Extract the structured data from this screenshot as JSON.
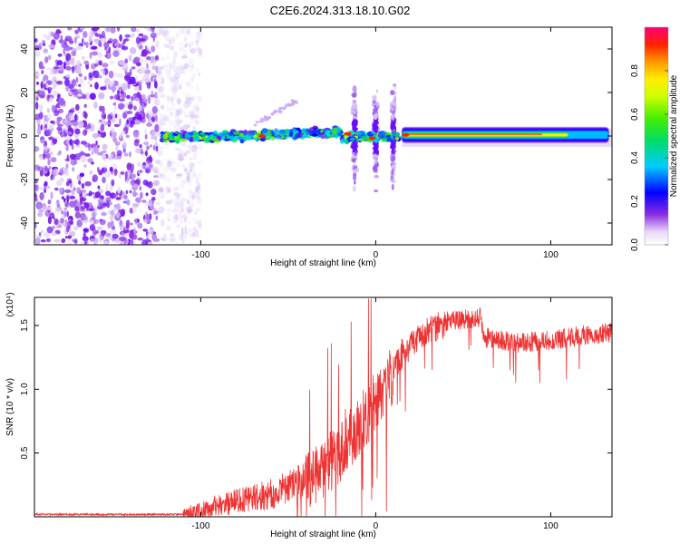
{
  "title": "C2E6.2024.313.18.10.G02",
  "chart_data": [
    {
      "type": "heatmap",
      "xlabel": "Height of straight line (km)",
      "ylabel": "Frequency (Hz)",
      "xlim": [
        -195,
        135
      ],
      "ylim": [
        -50,
        50
      ],
      "xticks": [
        -100,
        0,
        100
      ],
      "yticks": [
        -40,
        -20,
        0,
        20,
        40
      ],
      "colorbar": {
        "label": "Normalized spectral amplitude",
        "range": [
          0,
          1
        ],
        "ticks": [
          0.0,
          0.2,
          0.4,
          0.6,
          0.8
        ],
        "tick_labels": [
          "0.0",
          "0.2",
          "0.4",
          "0.6",
          "0.8"
        ]
      },
      "features": {
        "scatter_noise_x_range": [
          -195,
          -105
        ],
        "main_band_x_range": [
          -122,
          135
        ],
        "main_band_center_hz": 0,
        "bright_segment_x_range": [
          15,
          130
        ],
        "vertical_spikes_x": [
          -12,
          0,
          10
        ]
      }
    },
    {
      "type": "line",
      "xlabel": "Height of straight line (km)",
      "ylabel": "SNR (10 * v/v)",
      "y_multiplier": "(x10⁴)",
      "xlim": [
        -195,
        135
      ],
      "ylim": [
        0,
        1.72
      ],
      "xticks": [
        -100,
        0,
        100
      ],
      "yticks": [
        0.5,
        1.0,
        1.5
      ],
      "ytick_labels": [
        "0.5",
        "1.0",
        "1.5"
      ],
      "color": "#ee3333",
      "series_profile": {
        "x": [
          -195,
          -110,
          -100,
          -80,
          -60,
          -40,
          -20,
          -5,
          5,
          15,
          25,
          40,
          60,
          62,
          80,
          100,
          120,
          135
        ],
        "y": [
          0.02,
          0.02,
          0.06,
          0.14,
          0.2,
          0.32,
          0.55,
          0.85,
          1.05,
          1.3,
          1.45,
          1.55,
          1.58,
          1.42,
          1.38,
          1.4,
          1.44,
          1.46
        ]
      }
    }
  ]
}
